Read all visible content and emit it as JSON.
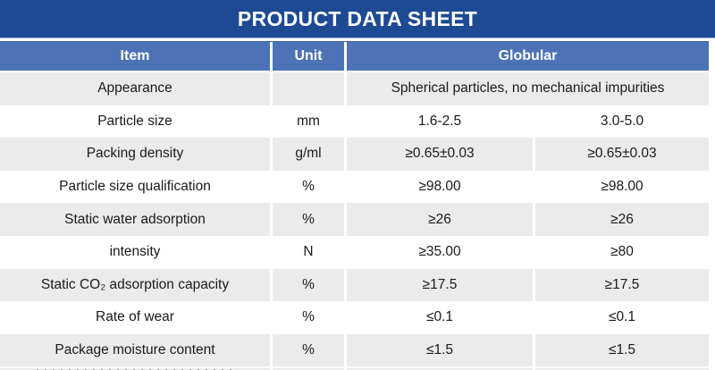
{
  "page": {
    "title": "PRODUCT DATA SHEET"
  },
  "colors": {
    "title_bar": "#1d4a93",
    "header_row": "#4d73b6",
    "stripe_gray": "#ebebeb",
    "stripe_white": "#ffffff",
    "text": "#1a1a1a",
    "header_text": "#ffffff"
  },
  "table": {
    "columns": {
      "item": "Item",
      "unit": "Unit",
      "group": "Globular"
    },
    "rows": [
      {
        "item": "Appearance",
        "unit": "",
        "value_span": "Spherical particles, no mechanical impurities"
      },
      {
        "item": "Particle size",
        "unit": "mm",
        "value1": "1.6-2.5",
        "value2": "3.0-5.0"
      },
      {
        "item": "Packing density",
        "unit": "g/ml",
        "value1": "≥0.65±0.03",
        "value2": "≥0.65±0.03"
      },
      {
        "item": "Particle size qualification",
        "unit": "%",
        "value1": "≥98.00",
        "value2": "≥98.00"
      },
      {
        "item": "Static water adsorption",
        "unit": "%",
        "value1": "≥26",
        "value2": "≥26"
      },
      {
        "item": "intensity",
        "unit": "N",
        "value1": "≥35.00",
        "value2": "≥80"
      },
      {
        "item": "Static CO₂ adsorption capacity",
        "unit": "%",
        "value1": "≥17.5",
        "value2": "≥17.5"
      },
      {
        "item": "Rate of wear",
        "unit": "%",
        "value1": "≤0.1",
        "value2": "≤0.1"
      },
      {
        "item": "Package moisture content",
        "unit": "%",
        "value1": "≤1.5",
        "value2": "≤1.5"
      }
    ]
  }
}
